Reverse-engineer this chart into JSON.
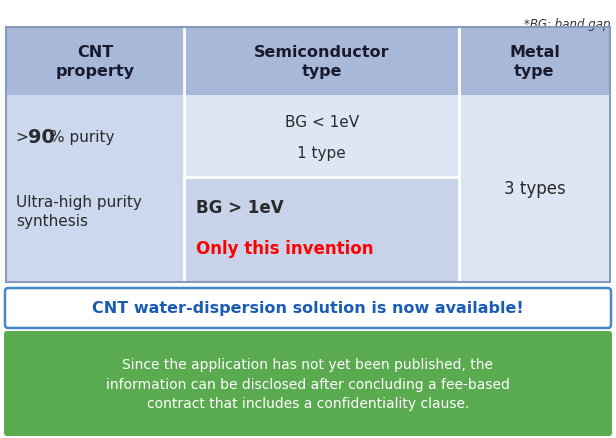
{
  "bg_note": "*BG: band gap",
  "header_bg": "#a8b8d8",
  "header_text_color": "#1a1a2e",
  "row_bg_light": "#ccd8ee",
  "row_bg_lighter": "#dde6f4",
  "row_bg_mid": "#c8d2e8",
  "col1_header": "CNT\nproperty",
  "col2_header": "Semiconductor\ntype",
  "col3_header": "Metal\ntype",
  "col2_content_top_line1": "BG < 1eV",
  "col2_content_top_line2": "1 type",
  "col2_content_bot_line1": "BG > 1eV",
  "col2_content_bot_line2": "Only this invention",
  "col3_content": "3 types",
  "cnt_banner_text": "CNT water-dispersion solution is now available!",
  "cnt_banner_text_color": "#1a5bb5",
  "cnt_banner_border_color": "#4488cc",
  "cnt_banner_bg": "#ffffff",
  "green_banner_text": "Since the application has not yet been published, the\ninformation can be disclosed after concluding a fee-based\ncontract that includes a confidentiality clause.",
  "green_banner_bg": "#5aaa50",
  "green_banner_text_color": "#ffffff",
  "fig_bg": "#ffffff",
  "fig_w": 6.16,
  "fig_h": 4.39,
  "dpi": 100
}
